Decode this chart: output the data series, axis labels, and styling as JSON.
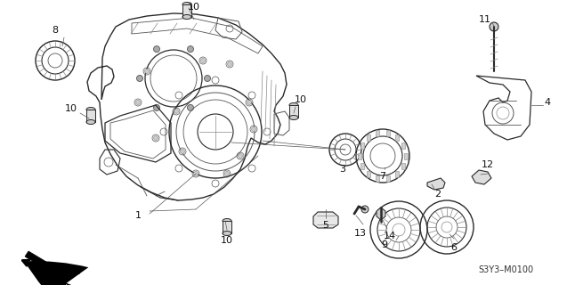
{
  "background_color": "#ffffff",
  "diagram_code": "S3Y3–M0100",
  "fig_width": 6.37,
  "fig_height": 3.2,
  "dpi": 100,
  "lc": "#2a2a2a",
  "lc2": "#555555",
  "lc3": "#888888"
}
